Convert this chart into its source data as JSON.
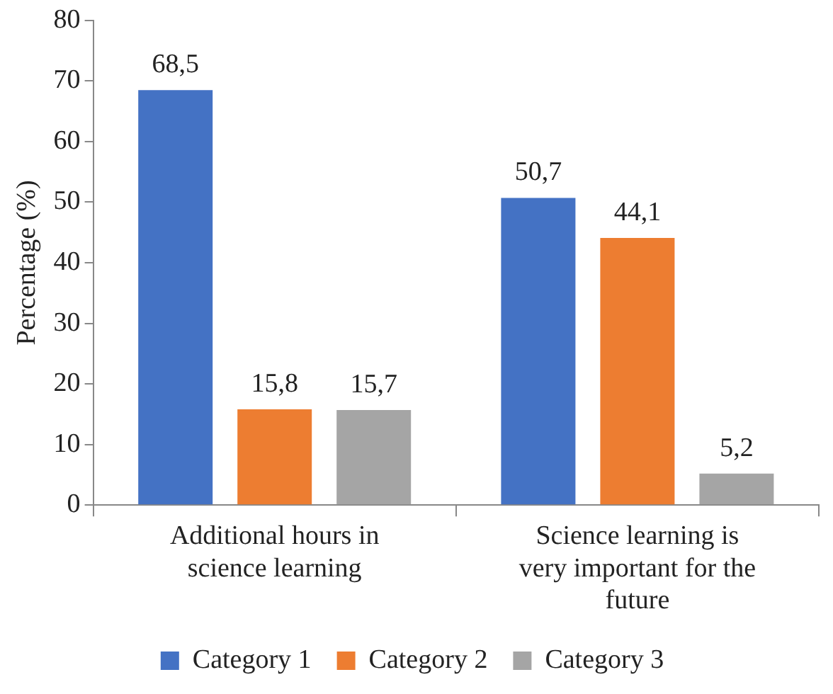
{
  "chart_data": {
    "type": "bar",
    "ylabel": "Percentage (%)",
    "categories": [
      "Additional hours in science learning",
      "Science learning is very important for the future"
    ],
    "series": [
      {
        "name": "Category 1",
        "color": "#4472c4",
        "values": [
          68.5,
          50.7
        ],
        "value_labels": [
          "68,5",
          "50,7"
        ]
      },
      {
        "name": "Category 2",
        "color": "#ed7d31",
        "values": [
          15.8,
          44.1
        ],
        "value_labels": [
          "15,8",
          "44,1"
        ]
      },
      {
        "name": "Category 3",
        "color": "#a5a5a5",
        "values": [
          15.7,
          5.2
        ],
        "value_labels": [
          "15,7",
          "5,2"
        ]
      }
    ],
    "ylim": [
      0,
      80
    ],
    "yticks": [
      0,
      10,
      20,
      30,
      40,
      50,
      60,
      70,
      80
    ],
    "grid": false,
    "legend": "bottom"
  }
}
